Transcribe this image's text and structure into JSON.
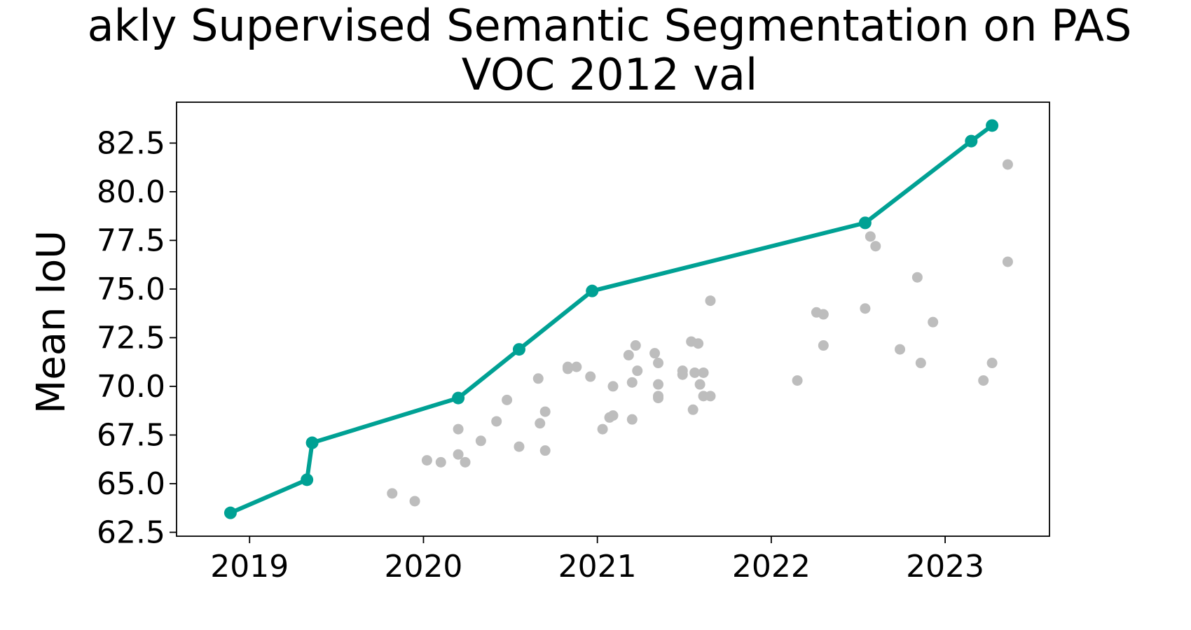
{
  "chart_data": {
    "type": "scatter",
    "title_line1": "akly Supervised Semantic Segmentation on PAS",
    "title_line2": "VOC 2012 val",
    "xlabel": "",
    "ylabel": "Mean IoU",
    "xlim": [
      2018.58,
      2023.6
    ],
    "ylim": [
      62.3,
      84.6
    ],
    "xticks": [
      2019,
      2020,
      2021,
      2022,
      2023
    ],
    "xtick_labels": [
      "2019",
      "2020",
      "2021",
      "2022",
      "2023"
    ],
    "yticks": [
      62.5,
      65.0,
      67.5,
      70.0,
      72.5,
      75.0,
      77.5,
      80.0,
      82.5
    ],
    "ytick_labels": [
      "62.5",
      "65.0",
      "67.5",
      "70.0",
      "72.5",
      "75.0",
      "77.5",
      "80.0",
      "82.5"
    ],
    "grid": false,
    "colors": {
      "sota": "#00a194",
      "other": "#bdbdbd"
    },
    "series": [
      {
        "role": "sota-frontier",
        "points": [
          [
            2018.89,
            63.5
          ],
          [
            2019.33,
            65.2
          ],
          [
            2019.36,
            67.1
          ],
          [
            2020.2,
            69.4
          ],
          [
            2020.55,
            71.9
          ],
          [
            2020.97,
            74.9
          ],
          [
            2022.54,
            78.4
          ],
          [
            2023.15,
            82.6
          ],
          [
            2023.27,
            83.4
          ]
        ]
      },
      {
        "role": "other-methods",
        "points": [
          [
            2019.82,
            64.5
          ],
          [
            2019.95,
            64.1
          ],
          [
            2020.02,
            66.2
          ],
          [
            2020.1,
            66.1
          ],
          [
            2020.2,
            67.8
          ],
          [
            2020.2,
            66.5
          ],
          [
            2020.24,
            66.1
          ],
          [
            2020.33,
            67.2
          ],
          [
            2020.42,
            68.2
          ],
          [
            2020.48,
            69.3
          ],
          [
            2020.55,
            66.9
          ],
          [
            2020.66,
            70.4
          ],
          [
            2020.67,
            68.1
          ],
          [
            2020.7,
            68.7
          ],
          [
            2020.7,
            66.7
          ],
          [
            2020.83,
            71.0
          ],
          [
            2020.83,
            70.9
          ],
          [
            2020.88,
            71.0
          ],
          [
            2020.96,
            70.5
          ],
          [
            2021.03,
            67.8
          ],
          [
            2021.07,
            68.4
          ],
          [
            2021.09,
            68.5
          ],
          [
            2021.09,
            70.0
          ],
          [
            2021.18,
            71.6
          ],
          [
            2021.2,
            70.2
          ],
          [
            2021.2,
            68.3
          ],
          [
            2021.22,
            72.1
          ],
          [
            2021.23,
            70.8
          ],
          [
            2021.33,
            71.7
          ],
          [
            2021.35,
            71.2
          ],
          [
            2021.35,
            70.1
          ],
          [
            2021.35,
            69.5
          ],
          [
            2021.35,
            69.4
          ],
          [
            2021.49,
            70.8
          ],
          [
            2021.49,
            70.6
          ],
          [
            2021.54,
            72.3
          ],
          [
            2021.55,
            68.8
          ],
          [
            2021.56,
            70.7
          ],
          [
            2021.58,
            72.2
          ],
          [
            2021.59,
            70.1
          ],
          [
            2021.61,
            70.7
          ],
          [
            2021.61,
            69.5
          ],
          [
            2021.65,
            69.5
          ],
          [
            2021.65,
            74.4
          ],
          [
            2022.15,
            70.3
          ],
          [
            2022.26,
            73.8
          ],
          [
            2022.3,
            73.7
          ],
          [
            2022.3,
            72.1
          ],
          [
            2022.54,
            74.0
          ],
          [
            2022.57,
            77.7
          ],
          [
            2022.6,
            77.2
          ],
          [
            2022.74,
            71.9
          ],
          [
            2022.84,
            75.6
          ],
          [
            2022.86,
            71.2
          ],
          [
            2022.93,
            73.3
          ],
          [
            2023.22,
            70.3
          ],
          [
            2023.27,
            71.2
          ],
          [
            2023.36,
            81.4
          ],
          [
            2023.36,
            76.4
          ]
        ]
      }
    ]
  }
}
